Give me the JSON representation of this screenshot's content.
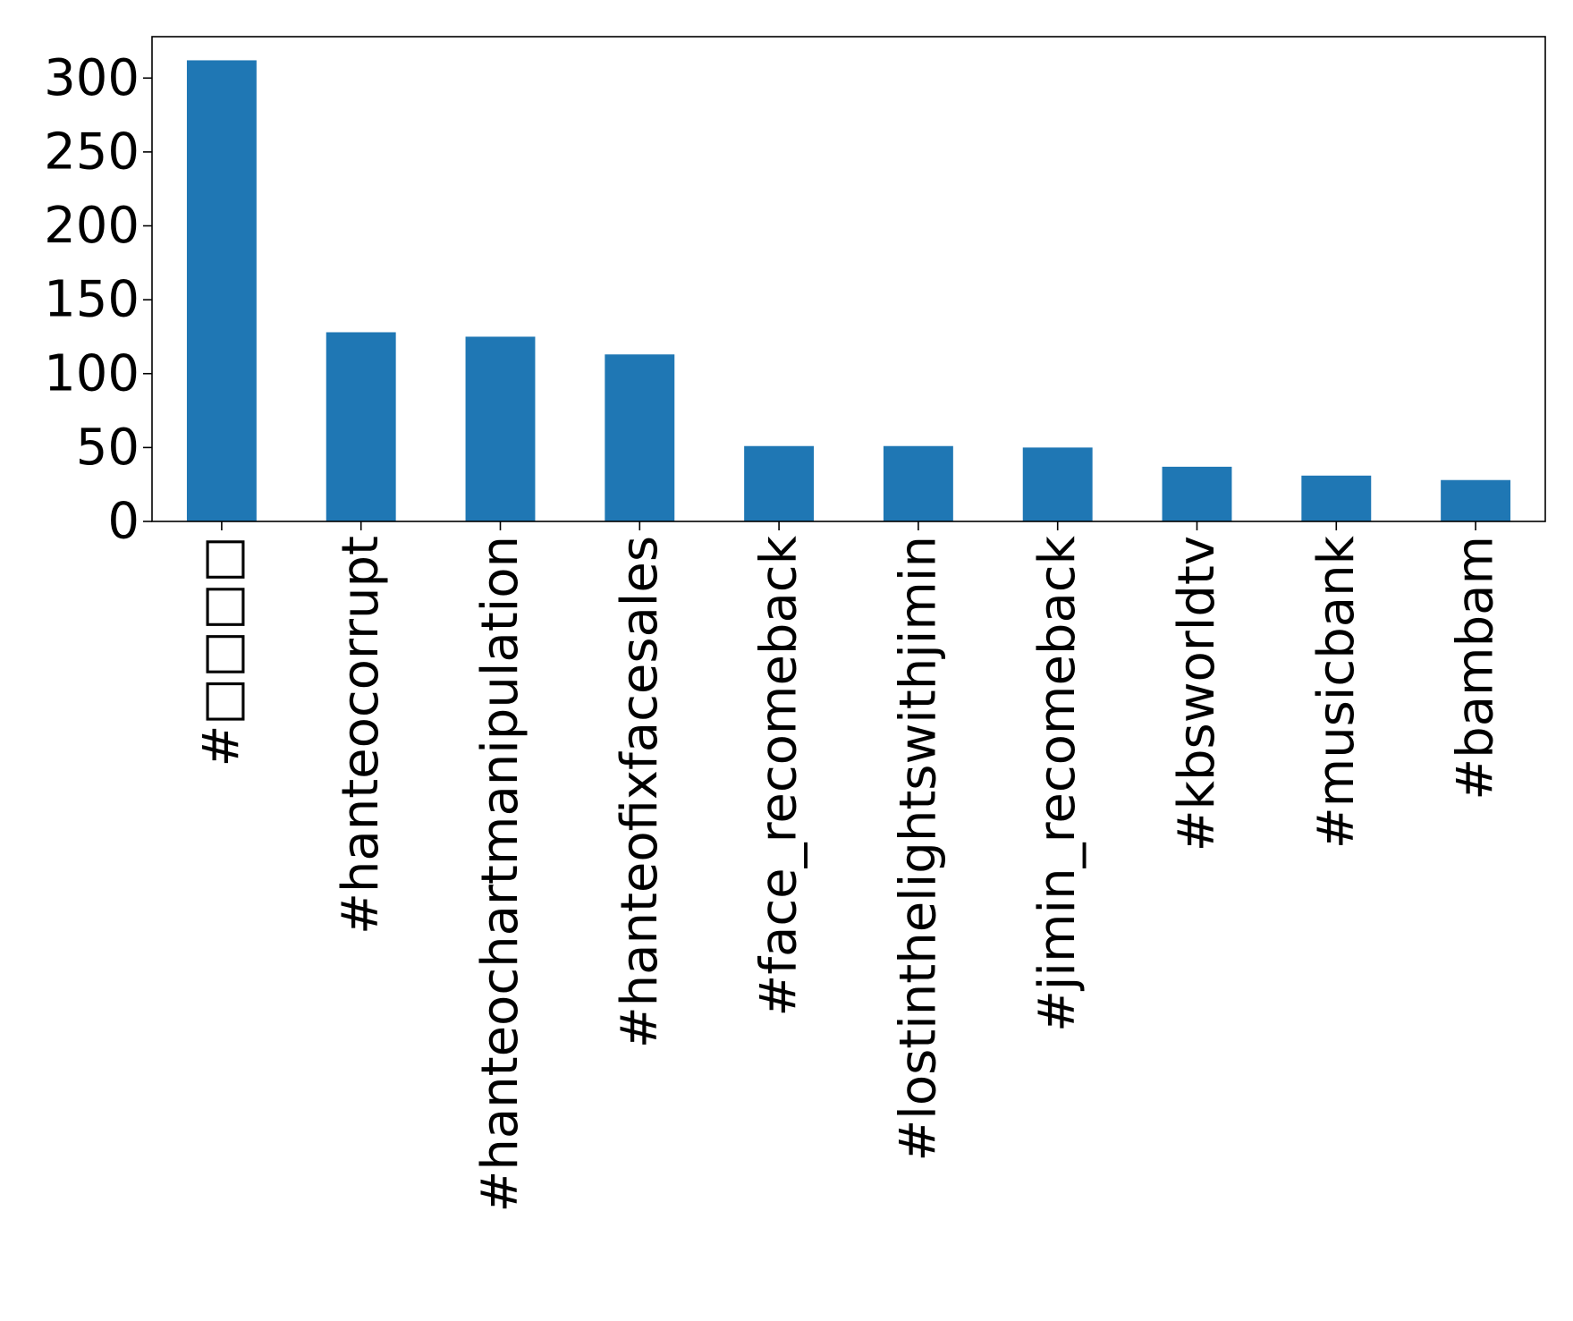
{
  "chart_data": {
    "type": "bar",
    "title": "",
    "xlabel": "",
    "ylabel": "",
    "categories": [
      "#□□□□",
      "#hanteocorrupt",
      "#hanteochartmanipulation",
      "#hanteofixfacesales",
      "#face_recomeback",
      "#lostinthelightswithjimin",
      "#jimin_recomeback",
      "#kbsworldtv",
      "#musicbank",
      "#bambam"
    ],
    "values": [
      312,
      128,
      125,
      113,
      51,
      51,
      50,
      37,
      31,
      28
    ],
    "ylim": [
      0,
      328
    ],
    "yticks": [
      0,
      50,
      100,
      150,
      200,
      250,
      300
    ],
    "ytick_labels": [
      "0",
      "50",
      "100",
      "150",
      "200",
      "250",
      "300"
    ],
    "grid": false,
    "legend": "none",
    "bar_color": "#1f77b4"
  }
}
